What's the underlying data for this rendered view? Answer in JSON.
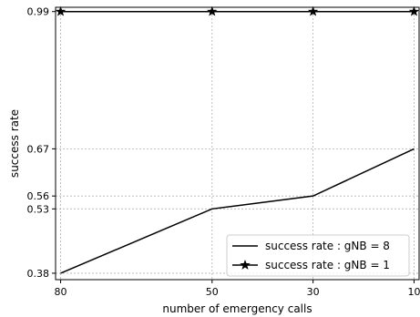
{
  "chart_data": {
    "type": "line",
    "title": "",
    "xlabel": "number of emergency calls",
    "ylabel": "success rate",
    "x": [
      80,
      50,
      30,
      10
    ],
    "x_ticks": [
      "80",
      "50",
      "30",
      "10"
    ],
    "y_ticks": [
      0.38,
      0.53,
      0.56,
      0.67,
      0.99
    ],
    "y_tick_labels": [
      "0.38",
      "0.53",
      "0.56",
      "0.67",
      "0.99"
    ],
    "ylim": [
      0.365,
      1.0
    ],
    "grid": true,
    "legend_position": "bottom-right",
    "series": [
      {
        "name": "success rate : gNB = 8",
        "values": [
          0.38,
          0.53,
          0.56,
          0.67
        ],
        "marker": "none",
        "color": "#000000"
      },
      {
        "name": "success rate : gNB = 1",
        "values": [
          0.99,
          0.99,
          0.99,
          0.99
        ],
        "marker": "star",
        "color": "#000000"
      }
    ]
  }
}
